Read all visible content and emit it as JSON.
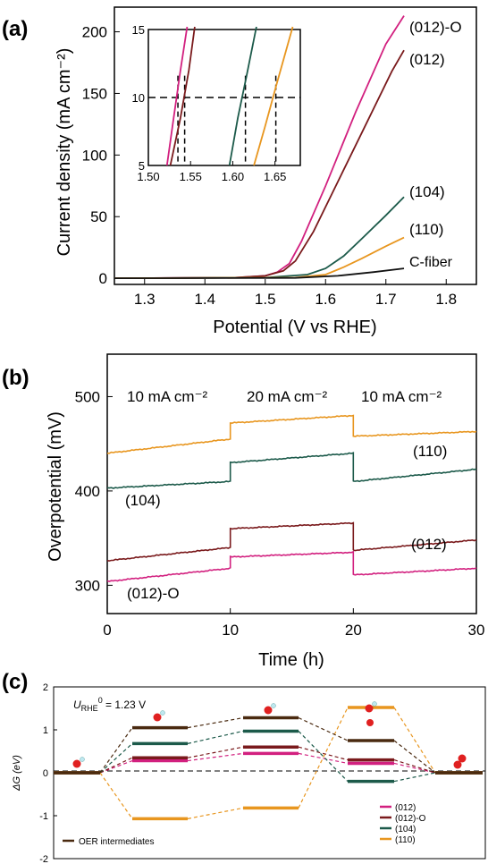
{
  "panels": {
    "a": {
      "label": "(a)"
    },
    "b": {
      "label": "(b)"
    },
    "c": {
      "label": "(c)"
    }
  },
  "colors": {
    "012_O": "#d2207f",
    "012": "#7a1a1c",
    "104": "#1c5a4a",
    "110": "#e8961f",
    "cfiber": "#111111",
    "oer": "#4a2a10"
  },
  "chart_data": [
    {
      "type": "line",
      "id": "a",
      "xlabel": "Potential (V vs RHE)",
      "ylabel": "Current density (mA cm⁻²)",
      "xlim": [
        1.25,
        1.85
      ],
      "ylim": [
        -5,
        220
      ],
      "xticks": [
        1.3,
        1.4,
        1.5,
        1.6,
        1.7,
        1.8
      ],
      "yticks": [
        0,
        50,
        100,
        150,
        200
      ],
      "series": [
        {
          "name": "(012)-O",
          "color_key": "012_O",
          "x": [
            1.25,
            1.45,
            1.5,
            1.52,
            1.54,
            1.56,
            1.6,
            1.65,
            1.7,
            1.73
          ],
          "y": [
            0,
            0.5,
            2,
            5,
            12,
            30,
            75,
            135,
            190,
            213
          ]
        },
        {
          "name": "(012)",
          "color_key": "012",
          "x": [
            1.25,
            1.45,
            1.5,
            1.53,
            1.55,
            1.58,
            1.62,
            1.67,
            1.71,
            1.73
          ],
          "y": [
            0,
            0.5,
            2,
            6,
            14,
            38,
            78,
            128,
            168,
            185
          ]
        },
        {
          "name": "(104)",
          "color_key": "104",
          "x": [
            1.25,
            1.5,
            1.57,
            1.6,
            1.63,
            1.66,
            1.7,
            1.73
          ],
          "y": [
            0,
            0.5,
            3,
            8,
            18,
            32,
            51,
            66
          ]
        },
        {
          "name": "(110)",
          "color_key": "110",
          "x": [
            1.25,
            1.55,
            1.6,
            1.63,
            1.66,
            1.7,
            1.73
          ],
          "y": [
            0,
            0.5,
            3,
            9,
            16,
            26,
            33
          ]
        },
        {
          "name": "C-fiber",
          "color_key": "cfiber",
          "x": [
            1.25,
            1.55,
            1.62,
            1.68,
            1.73
          ],
          "y": [
            0,
            0.3,
            2,
            5,
            8
          ]
        }
      ],
      "inset": {
        "xlim": [
          1.5,
          1.68
        ],
        "ylim": [
          5,
          15
        ],
        "xticks": [
          1.5,
          1.55,
          1.6,
          1.65
        ],
        "xtick_labels": [
          "1.50",
          "1.55",
          "1.60",
          "1.65"
        ],
        "yticks": [
          5,
          10,
          15
        ],
        "dashed_y": 10,
        "dashed_x": [
          1.535,
          1.543,
          1.615,
          1.651
        ],
        "series": [
          {
            "color_key": "012_O",
            "x": [
              1.522,
              1.53,
              1.538,
              1.546
            ],
            "y": [
              5,
              8.5,
              12,
              15.2
            ]
          },
          {
            "color_key": "012",
            "x": [
              1.526,
              1.538,
              1.548,
              1.555
            ],
            "y": [
              5,
              8.5,
              12,
              15.2
            ]
          },
          {
            "color_key": "104",
            "x": [
              1.596,
              1.606,
              1.616,
              1.628
            ],
            "y": [
              5,
              8.5,
              11.5,
              15.2
            ]
          },
          {
            "color_key": "110",
            "x": [
              1.625,
              1.638,
              1.652,
              1.671
            ],
            "y": [
              5,
              7.8,
              11,
              15.2
            ]
          }
        ]
      }
    },
    {
      "type": "line",
      "id": "b",
      "xlabel": "Time (h)",
      "ylabel": "Overpotential (mV)",
      "xlim": [
        0,
        30
      ],
      "ylim": [
        270,
        545
      ],
      "xticks": [
        0,
        10,
        20,
        30
      ],
      "yticks": [
        300,
        400,
        500
      ],
      "annotations": [
        "10 mA cm⁻²",
        "20 mA cm⁻²",
        "10 mA cm⁻²"
      ],
      "series": [
        {
          "name": "(110)",
          "color_key": "110",
          "x": [
            0,
            10,
            10,
            20,
            20,
            30
          ],
          "y": [
            440,
            455,
            472,
            480,
            458,
            463
          ]
        },
        {
          "name": "(104)",
          "color_key": "104",
          "x": [
            0,
            10,
            10,
            20,
            20,
            30
          ],
          "y": [
            403,
            410,
            430,
            440,
            410,
            423
          ]
        },
        {
          "name": "(012)",
          "color_key": "012",
          "x": [
            0,
            10,
            10,
            20,
            20,
            30
          ],
          "y": [
            326,
            340,
            360,
            366,
            337,
            348
          ]
        },
        {
          "name": "(012)-O",
          "color_key": "012_O",
          "x": [
            0,
            10,
            10,
            20,
            20,
            30
          ],
          "y": [
            304,
            318,
            330,
            335,
            311,
            318
          ]
        }
      ]
    },
    {
      "type": "line",
      "id": "c",
      "ylabel": "ΔG (eV)",
      "ylim": [
        -2,
        2
      ],
      "yticks": [
        -2,
        -1,
        0,
        1,
        2
      ],
      "potential_label_prefix": "U",
      "potential_label_sub": "RHE",
      "potential_label_sup": "0",
      "potential_label_value": " = 1.23 V",
      "series": [
        {
          "name": "(012)",
          "color_key": "012_O",
          "y": [
            0,
            0.28,
            0.45,
            0.22,
            0
          ]
        },
        {
          "name": "(012)-O",
          "color_key": "012",
          "y": [
            0,
            0.35,
            0.6,
            0.3,
            0
          ]
        },
        {
          "name": "(104)",
          "color_key": "104",
          "y": [
            0,
            0.68,
            0.97,
            -0.2,
            0
          ]
        },
        {
          "name": "(110)",
          "color_key": "110",
          "y": [
            0,
            -1.07,
            -0.82,
            1.52,
            0
          ]
        },
        {
          "name": "OER intermediates",
          "color_key": "oer",
          "y": [
            0,
            1.05,
            1.28,
            0.75,
            0
          ]
        }
      ]
    }
  ]
}
